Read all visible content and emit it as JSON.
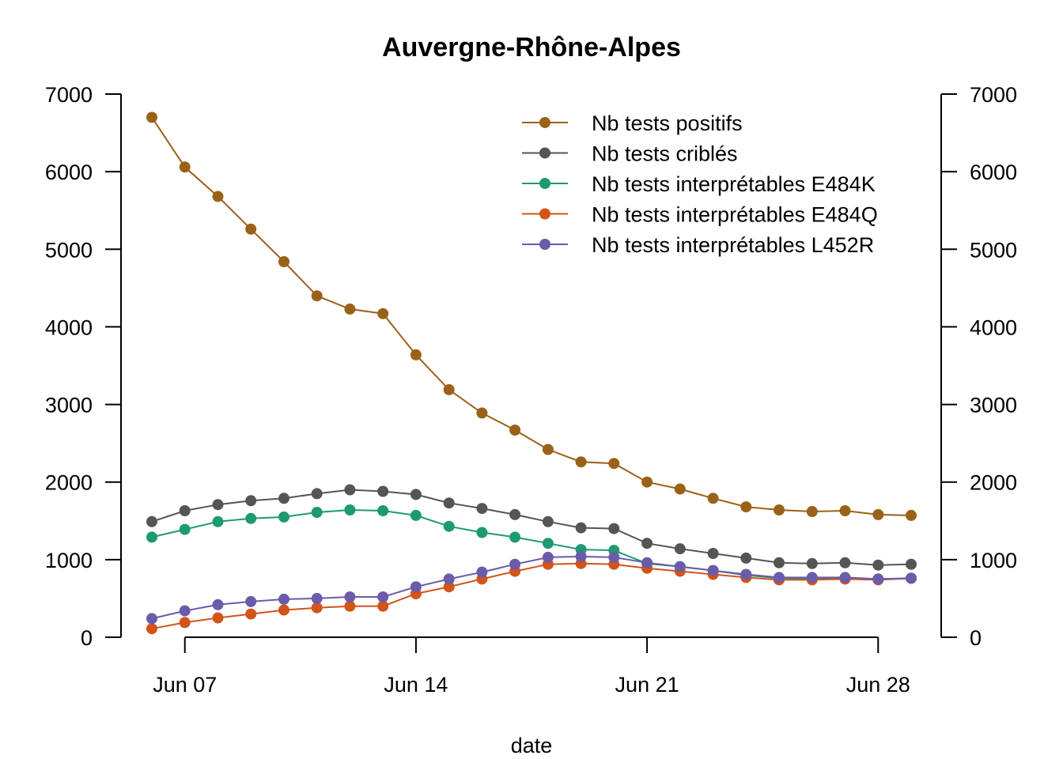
{
  "chart_data": {
    "type": "line",
    "title": "Auvergne-Rhône-Alpes",
    "xlabel": "date",
    "ylabel": "",
    "ylim": [
      0,
      7000
    ],
    "yticks": [
      0,
      1000,
      2000,
      3000,
      4000,
      5000,
      6000,
      7000
    ],
    "yticks_right": [
      0,
      1000,
      2000,
      3000,
      4000,
      5000,
      6000,
      7000
    ],
    "xticks": [
      {
        "date": "2021-06-07",
        "label": "Jun 07"
      },
      {
        "date": "2021-06-14",
        "label": "Jun 14"
      },
      {
        "date": "2021-06-21",
        "label": "Jun 21"
      },
      {
        "date": "2021-06-28",
        "label": "Jun 28"
      }
    ],
    "x": [
      "2021-06-06",
      "2021-06-07",
      "2021-06-08",
      "2021-06-09",
      "2021-06-10",
      "2021-06-11",
      "2021-06-12",
      "2021-06-13",
      "2021-06-14",
      "2021-06-15",
      "2021-06-16",
      "2021-06-17",
      "2021-06-18",
      "2021-06-19",
      "2021-06-20",
      "2021-06-21",
      "2021-06-22",
      "2021-06-23",
      "2021-06-24",
      "2021-06-25",
      "2021-06-26",
      "2021-06-27",
      "2021-06-28",
      "2021-06-29"
    ],
    "legend_position": "top-right",
    "grid": false,
    "series": [
      {
        "name": "Nb tests positifs",
        "color": "#9A6218",
        "values": [
          6700,
          6060,
          5680,
          5260,
          4840,
          4400,
          4230,
          4170,
          3640,
          3190,
          2890,
          2670,
          2420,
          2260,
          2240,
          2000,
          1910,
          1790,
          1680,
          1640,
          1620,
          1630,
          1580,
          1570
        ]
      },
      {
        "name": "Nb tests criblés",
        "color": "#555555",
        "values": [
          1490,
          1630,
          1710,
          1760,
          1790,
          1850,
          1900,
          1880,
          1840,
          1730,
          1660,
          1580,
          1490,
          1410,
          1400,
          1210,
          1140,
          1080,
          1020,
          960,
          950,
          960,
          930,
          940
        ]
      },
      {
        "name": "Nb tests interprétables E484K",
        "color": "#1E9A72",
        "values": [
          1290,
          1390,
          1490,
          1530,
          1550,
          1610,
          1640,
          1630,
          1570,
          1430,
          1350,
          1290,
          1210,
          1130,
          1120,
          950,
          910,
          860,
          800,
          760,
          750,
          760,
          750,
          760
        ]
      },
      {
        "name": "Nb tests interprétables E484Q",
        "color": "#D2541A",
        "values": [
          110,
          190,
          250,
          300,
          350,
          380,
          400,
          400,
          560,
          650,
          750,
          850,
          940,
          950,
          940,
          890,
          850,
          810,
          770,
          740,
          740,
          750,
          740,
          760
        ]
      },
      {
        "name": "Nb tests interprétables L452R",
        "color": "#6B5BAA",
        "values": [
          240,
          340,
          420,
          460,
          490,
          500,
          520,
          520,
          650,
          750,
          840,
          940,
          1030,
          1040,
          1030,
          960,
          910,
          860,
          810,
          770,
          770,
          770,
          750,
          760
        ]
      }
    ]
  }
}
